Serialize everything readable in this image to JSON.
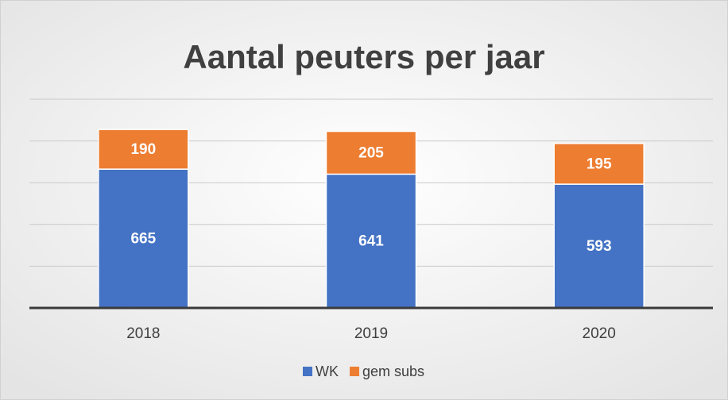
{
  "chart_data": {
    "type": "stacked_bar",
    "title": "Aantal peuters per jaar",
    "categories": [
      "2018",
      "2019",
      "2020"
    ],
    "series": [
      {
        "name": "WK",
        "color": "#4472c4",
        "values": [
          665,
          641,
          593
        ]
      },
      {
        "name": "gem subs",
        "color": "#ed7d31",
        "values": [
          190,
          205,
          195
        ]
      }
    ],
    "ylim": [
      0,
      1000
    ],
    "yticks": [
      0,
      200,
      400,
      600,
      800,
      1000
    ],
    "grid": true,
    "legend": "bottom"
  }
}
